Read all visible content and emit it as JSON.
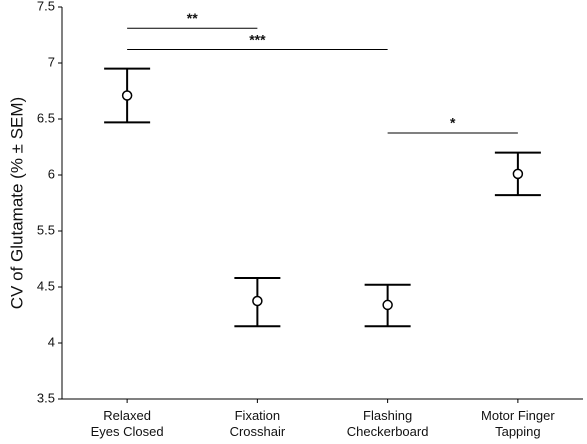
{
  "chart_data": {
    "type": "errorbar",
    "ylabel": "CV of Glutamate (% ± SEM)",
    "categories": [
      [
        "Relaxed",
        "Eyes Closed"
      ],
      [
        "Fixation",
        "Crosshair"
      ],
      [
        "Flashing",
        "Checkerboard"
      ],
      [
        "Motor Finger",
        "Tapping"
      ]
    ],
    "values": [
      6.71,
      4.375,
      4.34,
      6.01
    ],
    "lower": [
      6.47,
      4.15,
      4.15,
      5.82
    ],
    "upper": [
      6.95,
      4.66,
      4.54,
      6.2
    ],
    "color": "#000000",
    "ylim": [
      3.5,
      7.5
    ],
    "yticks": [
      7.5,
      7.0,
      6.5,
      6.0,
      5.5,
      4.5,
      4.0,
      3.5
    ],
    "annotations": [
      {
        "text": "**",
        "from": 0,
        "to": 1,
        "y": 7.31
      },
      {
        "text": "***",
        "from": 0,
        "to": 2,
        "y": 7.12
      },
      {
        "text": "*",
        "from": 2,
        "to": 3,
        "y": 6.375
      }
    ]
  }
}
